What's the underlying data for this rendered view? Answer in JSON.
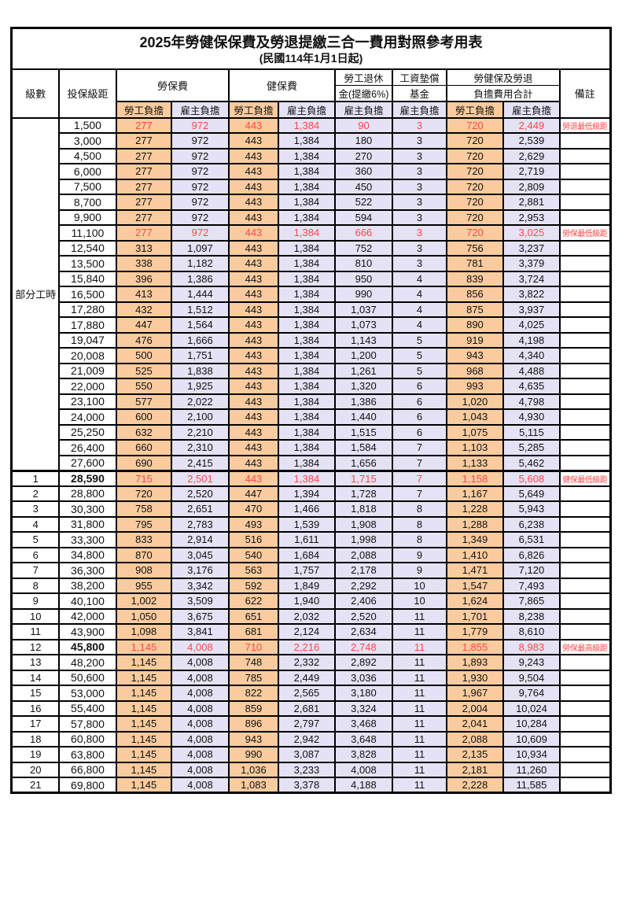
{
  "title": {
    "line1": "2025年勞健保保費及勞退提繳三合一費用對照參考用表",
    "line2": "(民國114年1月1日起)"
  },
  "colors": {
    "employee_bg": "#F9CB9E",
    "employer_bg": "#E4E2F4",
    "highlight_text": "#FF4747",
    "border": "#000000"
  },
  "header": {
    "level": "級數",
    "bracket": "投保級距",
    "labor_fee": "勞保費",
    "health_fee": "健保費",
    "pension_l1": "勞工退休",
    "pension_l2": "金(提繳6%)",
    "wage_fund_l1": "工資墊償",
    "wage_fund_l2": "基金",
    "total_l1": "勞健保及勞退",
    "total_l2": "負擔費用合計",
    "remark": "備註",
    "employee": "勞工負擔",
    "employer": "雇主負擔"
  },
  "table": {
    "part_time_label": "部分工時",
    "rows": [
      {
        "lv": "",
        "br": "1,500",
        "v": [
          "277",
          "972",
          "443",
          "1,384",
          "90",
          "3",
          "720",
          "2,449"
        ],
        "rm": "勞退最低級距",
        "red": true
      },
      {
        "lv": "",
        "br": "3,000",
        "v": [
          "277",
          "972",
          "443",
          "1,384",
          "180",
          "3",
          "720",
          "2,539"
        ],
        "rm": ""
      },
      {
        "lv": "",
        "br": "4,500",
        "v": [
          "277",
          "972",
          "443",
          "1,384",
          "270",
          "3",
          "720",
          "2,629"
        ],
        "rm": ""
      },
      {
        "lv": "",
        "br": "6,000",
        "v": [
          "277",
          "972",
          "443",
          "1,384",
          "360",
          "3",
          "720",
          "2,719"
        ],
        "rm": ""
      },
      {
        "lv": "",
        "br": "7,500",
        "v": [
          "277",
          "972",
          "443",
          "1,384",
          "450",
          "3",
          "720",
          "2,809"
        ],
        "rm": ""
      },
      {
        "lv": "",
        "br": "8,700",
        "v": [
          "277",
          "972",
          "443",
          "1,384",
          "522",
          "3",
          "720",
          "2,881"
        ],
        "rm": ""
      },
      {
        "lv": "",
        "br": "9,900",
        "v": [
          "277",
          "972",
          "443",
          "1,384",
          "594",
          "3",
          "720",
          "2,953"
        ],
        "rm": ""
      },
      {
        "lv": "",
        "br": "11,100",
        "v": [
          "277",
          "972",
          "443",
          "1,384",
          "666",
          "3",
          "720",
          "3,025"
        ],
        "rm": "勞保最低級距",
        "red": true
      },
      {
        "lv": "",
        "br": "12,540",
        "v": [
          "313",
          "1,097",
          "443",
          "1,384",
          "752",
          "3",
          "756",
          "3,237"
        ],
        "rm": ""
      },
      {
        "lv": "",
        "br": "13,500",
        "v": [
          "338",
          "1,182",
          "443",
          "1,384",
          "810",
          "3",
          "781",
          "3,379"
        ],
        "rm": ""
      },
      {
        "lv": "",
        "br": "15,840",
        "v": [
          "396",
          "1,386",
          "443",
          "1,384",
          "950",
          "4",
          "839",
          "3,724"
        ],
        "rm": ""
      },
      {
        "lv": "",
        "br": "16,500",
        "v": [
          "413",
          "1,444",
          "443",
          "1,384",
          "990",
          "4",
          "856",
          "3,822"
        ],
        "rm": ""
      },
      {
        "lv": "",
        "br": "17,280",
        "v": [
          "432",
          "1,512",
          "443",
          "1,384",
          "1,037",
          "4",
          "875",
          "3,937"
        ],
        "rm": ""
      },
      {
        "lv": "",
        "br": "17,880",
        "v": [
          "447",
          "1,564",
          "443",
          "1,384",
          "1,073",
          "4",
          "890",
          "4,025"
        ],
        "rm": ""
      },
      {
        "lv": "",
        "br": "19,047",
        "v": [
          "476",
          "1,666",
          "443",
          "1,384",
          "1,143",
          "5",
          "919",
          "4,198"
        ],
        "rm": ""
      },
      {
        "lv": "",
        "br": "20,008",
        "v": [
          "500",
          "1,751",
          "443",
          "1,384",
          "1,200",
          "5",
          "943",
          "4,340"
        ],
        "rm": ""
      },
      {
        "lv": "",
        "br": "21,009",
        "v": [
          "525",
          "1,838",
          "443",
          "1,384",
          "1,261",
          "5",
          "968",
          "4,488"
        ],
        "rm": ""
      },
      {
        "lv": "",
        "br": "22,000",
        "v": [
          "550",
          "1,925",
          "443",
          "1,384",
          "1,320",
          "6",
          "993",
          "4,635"
        ],
        "rm": ""
      },
      {
        "lv": "",
        "br": "23,100",
        "v": [
          "577",
          "2,022",
          "443",
          "1,384",
          "1,386",
          "6",
          "1,020",
          "4,798"
        ],
        "rm": ""
      },
      {
        "lv": "",
        "br": "24,000",
        "v": [
          "600",
          "2,100",
          "443",
          "1,384",
          "1,440",
          "6",
          "1,043",
          "4,930"
        ],
        "rm": ""
      },
      {
        "lv": "",
        "br": "25,250",
        "v": [
          "632",
          "2,210",
          "443",
          "1,384",
          "1,515",
          "6",
          "1,075",
          "5,115"
        ],
        "rm": ""
      },
      {
        "lv": "",
        "br": "26,400",
        "v": [
          "660",
          "2,310",
          "443",
          "1,384",
          "1,584",
          "7",
          "1,103",
          "5,285"
        ],
        "rm": ""
      },
      {
        "lv": "",
        "br": "27,600",
        "v": [
          "690",
          "2,415",
          "443",
          "1,384",
          "1,656",
          "7",
          "1,133",
          "5,462"
        ],
        "rm": ""
      },
      {
        "lv": "1",
        "br": "28,590",
        "v": [
          "715",
          "2,501",
          "443",
          "1,384",
          "1,715",
          "7",
          "1,158",
          "5,608"
        ],
        "rm": "健保最低級距",
        "red": true,
        "bold": true,
        "sec": true
      },
      {
        "lv": "2",
        "br": "28,800",
        "v": [
          "720",
          "2,520",
          "447",
          "1,394",
          "1,728",
          "7",
          "1,167",
          "5,649"
        ],
        "rm": ""
      },
      {
        "lv": "3",
        "br": "30,300",
        "v": [
          "758",
          "2,651",
          "470",
          "1,466",
          "1,818",
          "8",
          "1,228",
          "5,943"
        ],
        "rm": ""
      },
      {
        "lv": "4",
        "br": "31,800",
        "v": [
          "795",
          "2,783",
          "493",
          "1,539",
          "1,908",
          "8",
          "1,288",
          "6,238"
        ],
        "rm": ""
      },
      {
        "lv": "5",
        "br": "33,300",
        "v": [
          "833",
          "2,914",
          "516",
          "1,611",
          "1,998",
          "8",
          "1,349",
          "6,531"
        ],
        "rm": ""
      },
      {
        "lv": "6",
        "br": "34,800",
        "v": [
          "870",
          "3,045",
          "540",
          "1,684",
          "2,088",
          "9",
          "1,410",
          "6,826"
        ],
        "rm": ""
      },
      {
        "lv": "7",
        "br": "36,300",
        "v": [
          "908",
          "3,176",
          "563",
          "1,757",
          "2,178",
          "9",
          "1,471",
          "7,120"
        ],
        "rm": ""
      },
      {
        "lv": "8",
        "br": "38,200",
        "v": [
          "955",
          "3,342",
          "592",
          "1,849",
          "2,292",
          "10",
          "1,547",
          "7,493"
        ],
        "rm": ""
      },
      {
        "lv": "9",
        "br": "40,100",
        "v": [
          "1,002",
          "3,509",
          "622",
          "1,940",
          "2,406",
          "10",
          "1,624",
          "7,865"
        ],
        "rm": ""
      },
      {
        "lv": "10",
        "br": "42,000",
        "v": [
          "1,050",
          "3,675",
          "651",
          "2,032",
          "2,520",
          "11",
          "1,701",
          "8,238"
        ],
        "rm": ""
      },
      {
        "lv": "11",
        "br": "43,900",
        "v": [
          "1,098",
          "3,841",
          "681",
          "2,124",
          "2,634",
          "11",
          "1,779",
          "8,610"
        ],
        "rm": ""
      },
      {
        "lv": "12",
        "br": "45,800",
        "v": [
          "1,145",
          "4,008",
          "710",
          "2,216",
          "2,748",
          "11",
          "1,855",
          "8,983"
        ],
        "rm": "勞保最高級距",
        "red": true,
        "bold": true
      },
      {
        "lv": "13",
        "br": "48,200",
        "v": [
          "1,145",
          "4,008",
          "748",
          "2,332",
          "2,892",
          "11",
          "1,893",
          "9,243"
        ],
        "rm": ""
      },
      {
        "lv": "14",
        "br": "50,600",
        "v": [
          "1,145",
          "4,008",
          "785",
          "2,449",
          "3,036",
          "11",
          "1,930",
          "9,504"
        ],
        "rm": ""
      },
      {
        "lv": "15",
        "br": "53,000",
        "v": [
          "1,145",
          "4,008",
          "822",
          "2,565",
          "3,180",
          "11",
          "1,967",
          "9,764"
        ],
        "rm": ""
      },
      {
        "lv": "16",
        "br": "55,400",
        "v": [
          "1,145",
          "4,008",
          "859",
          "2,681",
          "3,324",
          "11",
          "2,004",
          "10,024"
        ],
        "rm": ""
      },
      {
        "lv": "17",
        "br": "57,800",
        "v": [
          "1,145",
          "4,008",
          "896",
          "2,797",
          "3,468",
          "11",
          "2,041",
          "10,284"
        ],
        "rm": ""
      },
      {
        "lv": "18",
        "br": "60,800",
        "v": [
          "1,145",
          "4,008",
          "943",
          "2,942",
          "3,648",
          "11",
          "2,088",
          "10,609"
        ],
        "rm": ""
      },
      {
        "lv": "19",
        "br": "63,800",
        "v": [
          "1,145",
          "4,008",
          "990",
          "3,087",
          "3,828",
          "11",
          "2,135",
          "10,934"
        ],
        "rm": ""
      },
      {
        "lv": "20",
        "br": "66,800",
        "v": [
          "1,145",
          "4,008",
          "1,036",
          "3,233",
          "4,008",
          "11",
          "2,181",
          "11,260"
        ],
        "rm": ""
      },
      {
        "lv": "21",
        "br": "69,800",
        "v": [
          "1,145",
          "4,008",
          "1,083",
          "3,378",
          "4,188",
          "11",
          "2,228",
          "11,585"
        ],
        "rm": ""
      }
    ]
  }
}
